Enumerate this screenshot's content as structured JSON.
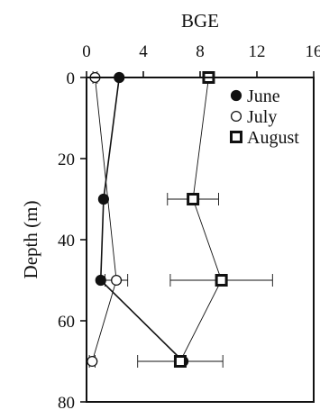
{
  "chart_data": {
    "type": "line",
    "title": "",
    "xlabel": "BGE",
    "ylabel": "Depth (m)",
    "x_axis_position": "top",
    "y_axis_inverted": true,
    "xlim": [
      0,
      16
    ],
    "ylim": [
      0,
      80
    ],
    "x_ticks": [
      "0",
      "4",
      "8",
      "12",
      "16"
    ],
    "y_ticks": [
      "0",
      "20",
      "40",
      "60",
      "80"
    ],
    "grid": false,
    "legend_position": "top-right",
    "series": [
      {
        "name": "June",
        "marker": "filled-circle",
        "points": [
          {
            "depth": 0,
            "bge": 2.3,
            "err": 0
          },
          {
            "depth": 30,
            "bge": 1.2,
            "err": 0
          },
          {
            "depth": 50,
            "bge": 1.0,
            "err": 0
          },
          {
            "depth": 70,
            "bge": 6.8,
            "err": 0
          }
        ]
      },
      {
        "name": "July",
        "marker": "open-circle",
        "points": [
          {
            "depth": 0,
            "bge": 0.6,
            "err": 0.15
          },
          {
            "depth": 50,
            "bge": 2.1,
            "err": 0.8
          },
          {
            "depth": 70,
            "bge": 0.4,
            "err": 0.2
          }
        ]
      },
      {
        "name": "August",
        "marker": "open-square",
        "points": [
          {
            "depth": 0,
            "bge": 8.6,
            "err": 0.2
          },
          {
            "depth": 30,
            "bge": 7.5,
            "err": 1.8
          },
          {
            "depth": 50,
            "bge": 9.5,
            "err": 3.6
          },
          {
            "depth": 70,
            "bge": 6.6,
            "err": 3.0
          }
        ]
      }
    ]
  }
}
